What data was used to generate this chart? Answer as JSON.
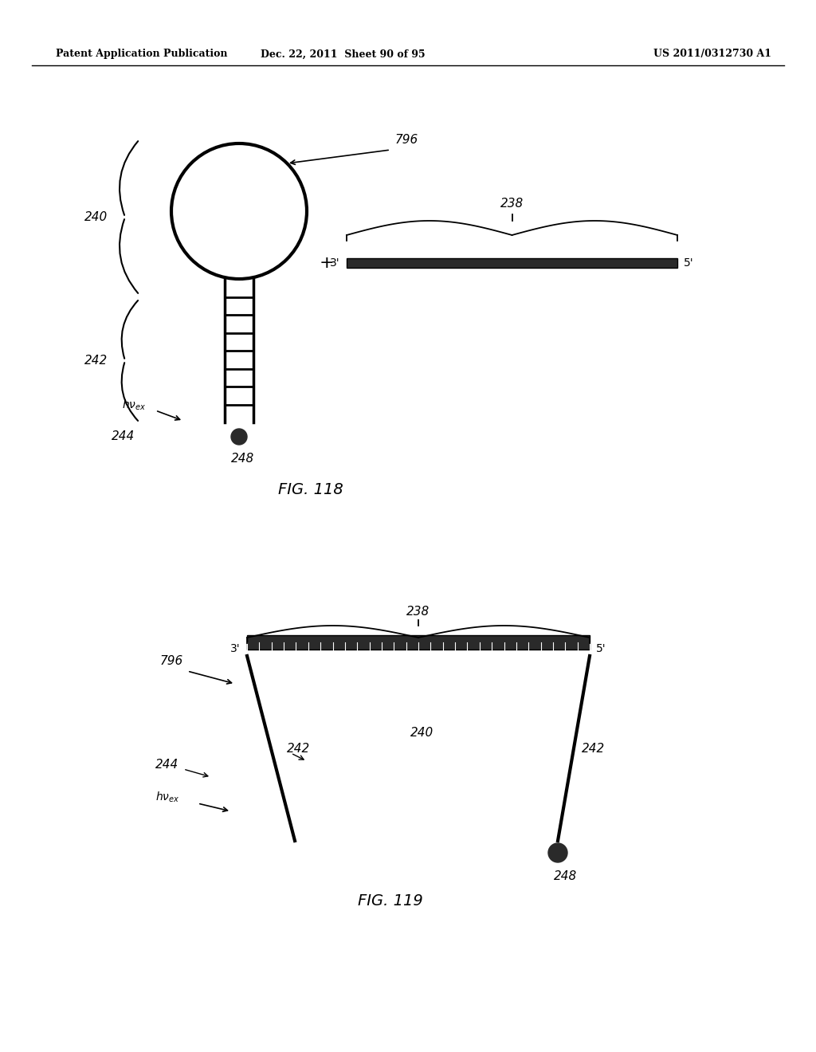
{
  "header_left": "Patent Application Publication",
  "header_mid": "Dec. 22, 2011  Sheet 90 of 95",
  "header_right": "US 2011/0312730 A1",
  "fig118_label": "FIG. 118",
  "fig119_label": "FIG. 119",
  "label_796_top": "796",
  "label_238_top": "238",
  "label_240_top": "240",
  "label_242_top": "242",
  "label_244_top": "244",
  "label_248_top": "248",
  "label_three_prime_top": "3'",
  "label_five_prime_top": "5'",
  "label_796_bot": "796",
  "label_238_bot": "238",
  "label_240_bot": "240",
  "label_242_bot_left": "242",
  "label_242_bot_right": "242",
  "label_244_bot": "244",
  "label_248_bot": "248",
  "label_three_prime_bot": "3'",
  "label_five_prime_bot": "5'",
  "bg_color": "#ffffff",
  "line_color": "#000000",
  "hatch_color": "#000000",
  "dark_fill": "#2a2a2a"
}
